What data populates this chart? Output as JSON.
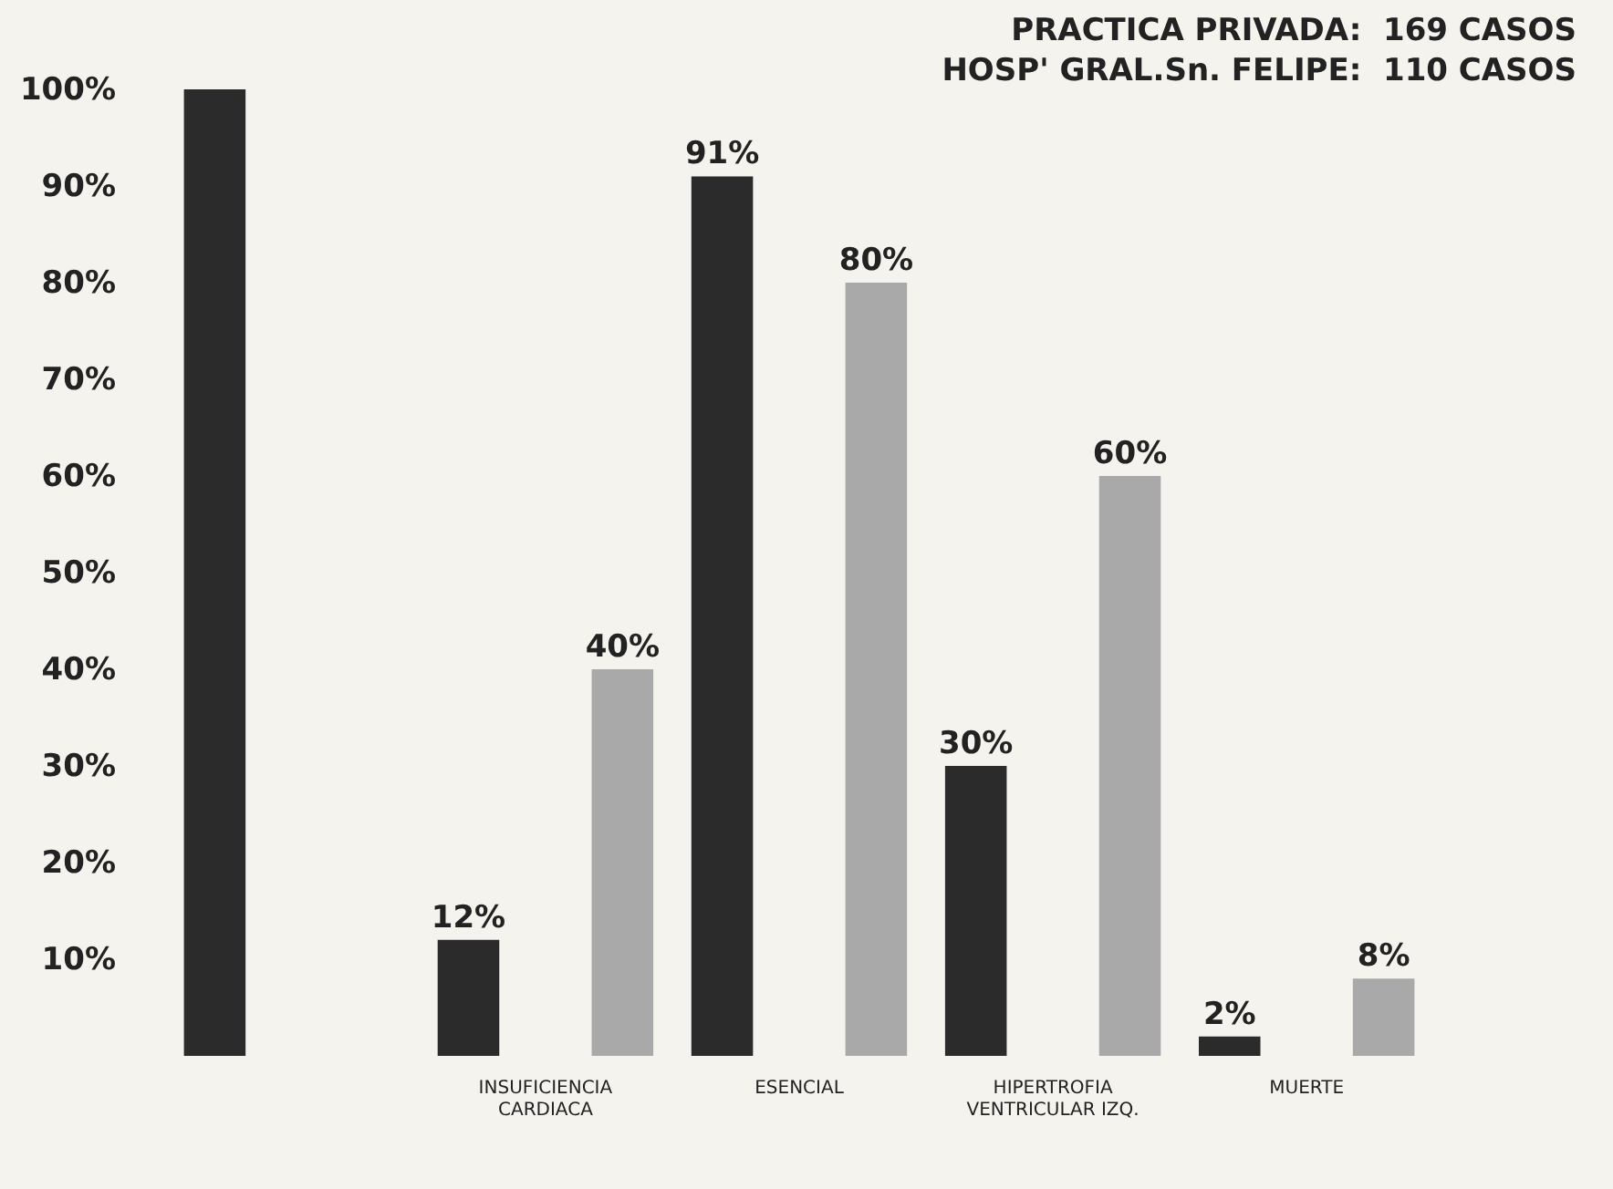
{
  "chart_data": {
    "type": "bar",
    "categories": [
      null,
      "INSUFICIENCIA\nCARDIACA",
      "ESENCIAL",
      "HIPERTROFIA\nVENTRICULAR IZQ.",
      "MUERTE"
    ],
    "series": [
      {
        "color": "#2b2b2b",
        "values": [
          100,
          12,
          91,
          30,
          2
        ],
        "value_labels": [
          null,
          "12%",
          "91%",
          "30%",
          "2%"
        ]
      },
      {
        "color": "#a9a9a9",
        "values": [
          null,
          40,
          80,
          60,
          8
        ],
        "value_labels": [
          null,
          "40%",
          "80%",
          "60%",
          "8%"
        ]
      }
    ],
    "ylim": [
      0,
      100
    ],
    "yticks": [
      {
        "value": 10,
        "label": "10%"
      },
      {
        "value": 20,
        "label": "20%"
      },
      {
        "value": 30,
        "label": "30%"
      },
      {
        "value": 40,
        "label": "40%"
      },
      {
        "value": 50,
        "label": "50%"
      },
      {
        "value": 60,
        "label": "60%"
      },
      {
        "value": 70,
        "label": "70%"
      },
      {
        "value": 80,
        "label": "80%"
      },
      {
        "value": 90,
        "label": "90%"
      },
      {
        "value": 100,
        "label": "100%"
      }
    ],
    "annotations": [
      "PRACTICA PRIVADA:  169 CASOS",
      "HOSP' GRAL.Sn. FELIPE:  110 CASOS"
    ],
    "grid": false
  }
}
